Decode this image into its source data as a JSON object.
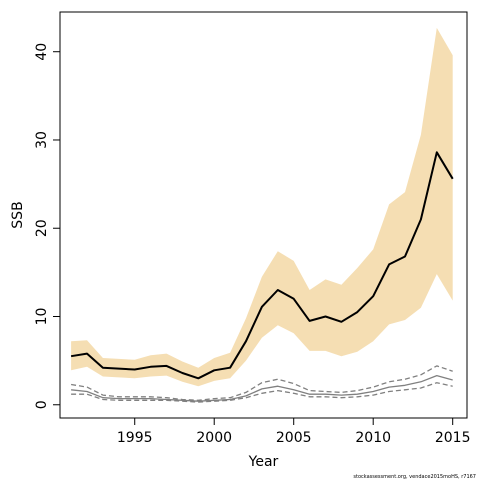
{
  "chart_data": {
    "type": "line",
    "xlabel": "Year",
    "ylabel": "SSB",
    "xlim": [
      1990.3,
      2015.9
    ],
    "ylim": [
      -1.5,
      44.5
    ],
    "x_ticks": [
      1995,
      2000,
      2005,
      2010,
      2015
    ],
    "y_ticks": [
      0,
      10,
      20,
      30,
      40
    ],
    "grid": false,
    "legend": "none",
    "footnote": "stockassessment.org, vendace2015moHS, r7167",
    "x": [
      1991,
      1992,
      1993,
      1994,
      1995,
      1996,
      1997,
      1998,
      1999,
      2000,
      2001,
      2002,
      2003,
      2004,
      2005,
      2006,
      2007,
      2008,
      2009,
      2010,
      2011,
      2012,
      2013,
      2014,
      2015
    ],
    "series": [
      {
        "role": "estimate",
        "style": "solid-black",
        "values": [
          5.5,
          5.8,
          4.2,
          4.1,
          4.0,
          4.3,
          4.4,
          3.6,
          3.0,
          3.9,
          4.2,
          7.2,
          11.1,
          13.0,
          12.0,
          9.5,
          10.0,
          9.4,
          10.5,
          12.3,
          15.9,
          16.8,
          21.0,
          28.6,
          25.6
        ]
      },
      {
        "role": "confidence-band",
        "color": "#f5deb3",
        "lower": [
          3.9,
          4.3,
          3.2,
          3.1,
          3.0,
          3.2,
          3.3,
          2.6,
          2.1,
          2.7,
          3.0,
          5.0,
          7.6,
          9.0,
          8.1,
          6.1,
          6.1,
          5.5,
          6.0,
          7.2,
          9.1,
          9.6,
          11.0,
          14.8,
          11.8
        ],
        "upper": [
          7.2,
          7.3,
          5.3,
          5.2,
          5.1,
          5.6,
          5.8,
          4.9,
          4.2,
          5.3,
          5.9,
          9.8,
          14.5,
          17.4,
          16.3,
          13.0,
          14.2,
          13.6,
          15.5,
          17.6,
          22.7,
          24.1,
          30.6,
          42.7,
          39.6
        ]
      },
      {
        "role": "reference-estimate",
        "style": "solid-gray",
        "values": [
          1.7,
          1.5,
          0.8,
          0.7,
          0.7,
          0.7,
          0.6,
          0.5,
          0.4,
          0.5,
          0.6,
          1.0,
          1.8,
          2.1,
          1.7,
          1.2,
          1.2,
          1.1,
          1.2,
          1.5,
          2.0,
          2.2,
          2.6,
          3.3,
          2.8
        ]
      },
      {
        "role": "reference-upper",
        "style": "dashed-gray",
        "values": [
          2.3,
          2.0,
          1.1,
          0.9,
          0.9,
          0.9,
          0.8,
          0.6,
          0.5,
          0.7,
          0.8,
          1.4,
          2.5,
          2.9,
          2.4,
          1.6,
          1.5,
          1.4,
          1.6,
          2.0,
          2.6,
          2.9,
          3.4,
          4.4,
          3.8
        ]
      },
      {
        "role": "reference-lower",
        "style": "dashed-gray",
        "values": [
          1.2,
          1.2,
          0.6,
          0.5,
          0.5,
          0.5,
          0.5,
          0.4,
          0.3,
          0.4,
          0.5,
          0.8,
          1.3,
          1.6,
          1.3,
          0.9,
          0.9,
          0.8,
          0.9,
          1.1,
          1.5,
          1.7,
          1.9,
          2.5,
          2.1
        ]
      }
    ]
  }
}
